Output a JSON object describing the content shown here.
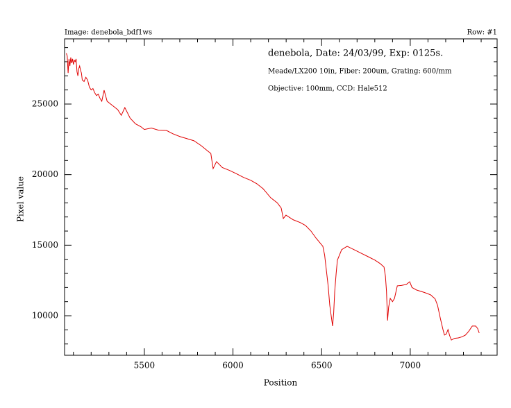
{
  "header": {
    "image": "Image:  denebola_bdf1ws",
    "row": "Row: #1"
  },
  "chart_data": {
    "type": "line",
    "annotations": [
      "denebola, Date: 24/03/99, Exp: 0125s.",
      "Meade/LX200  10in, Fiber: 200um, Grating: 600/mm",
      "Objective: 100mm, CCD: Hale512"
    ],
    "xlabel": "Position",
    "ylabel": "Pixel value",
    "xlim": [
      5050,
      7490
    ],
    "ylim": [
      7200,
      29620
    ],
    "xticks": [
      5500,
      6000,
      6500,
      7000
    ],
    "yticks": [
      10000,
      15000,
      20000,
      25000
    ],
    "xminorticks": [
      5100,
      5200,
      5300,
      5400,
      5600,
      5700,
      5800,
      5900,
      6100,
      6200,
      6300,
      6400,
      6600,
      6700,
      6800,
      6900,
      7100,
      7200,
      7300,
      7400
    ],
    "yminorticks": [
      8000,
      9000,
      11000,
      12000,
      13000,
      14000,
      16000,
      17000,
      18000,
      19000,
      21000,
      22000,
      23000,
      24000,
      26000,
      27000,
      28000,
      29000
    ],
    "series": [
      {
        "name": "Row #1",
        "color": "#e00000",
        "x": [
          5060,
          5065,
          5070,
          5075,
          5080,
          5085,
          5090,
          5095,
          5100,
          5105,
          5110,
          5115,
          5120,
          5125,
          5130,
          5135,
          5140,
          5145,
          5150,
          5160,
          5170,
          5180,
          5190,
          5200,
          5210,
          5220,
          5230,
          5240,
          5250,
          5260,
          5273,
          5290,
          5310,
          5330,
          5350,
          5370,
          5390,
          5420,
          5450,
          5480,
          5500,
          5540,
          5580,
          5625,
          5660,
          5700,
          5743,
          5780,
          5821,
          5860,
          5875,
          5888,
          5907,
          5940,
          5980,
          6017,
          6060,
          6100,
          6135,
          6170,
          6213,
          6250,
          6272,
          6284,
          6299,
          6340,
          6380,
          6409,
          6440,
          6468,
          6507,
          6517,
          6527,
          6537,
          6546,
          6555,
          6562,
          6568,
          6574,
          6582,
          6589,
          6613,
          6644,
          6680,
          6723,
          6760,
          6801,
          6830,
          6852,
          6860,
          6866,
          6872,
          6878,
          6887,
          6900,
          6911,
          6927,
          6950,
          6978,
          6997,
          7010,
          7036,
          7080,
          7115,
          7140,
          7154,
          7170,
          7185,
          7193,
          7203,
          7213,
          7222,
          7232,
          7250,
          7271,
          7290,
          7311,
          7330,
          7350,
          7369,
          7380,
          7389
        ],
        "values": [
          28600,
          28400,
          27200,
          28200,
          27700,
          28300,
          27900,
          28200,
          27800,
          28100,
          28000,
          28200,
          27300,
          27000,
          27500,
          27700,
          27400,
          27200,
          26700,
          26600,
          26900,
          26700,
          26200,
          26000,
          26100,
          25800,
          25600,
          25700,
          25400,
          25200,
          25980,
          25200,
          25000,
          24800,
          24600,
          24200,
          24750,
          24000,
          23600,
          23400,
          23200,
          23300,
          23150,
          23130,
          22900,
          22700,
          22540,
          22400,
          22050,
          21650,
          21500,
          20430,
          20920,
          20500,
          20300,
          20080,
          19800,
          19600,
          19350,
          19000,
          18360,
          18000,
          17630,
          16890,
          17130,
          16800,
          16600,
          16400,
          16000,
          15510,
          14920,
          14300,
          13200,
          12100,
          10740,
          9900,
          9270,
          10200,
          11730,
          13000,
          13940,
          14680,
          14920,
          14700,
          14430,
          14200,
          13940,
          13700,
          13450,
          12800,
          11730,
          9660,
          10600,
          11230,
          11000,
          11230,
          12120,
          12150,
          12220,
          12410,
          12000,
          11820,
          11650,
          11480,
          11200,
          10740,
          9800,
          9000,
          8630,
          8700,
          9020,
          8600,
          8280,
          8400,
          8430,
          8500,
          8630,
          8900,
          9270,
          9270,
          9100,
          8780
        ]
      }
    ]
  }
}
